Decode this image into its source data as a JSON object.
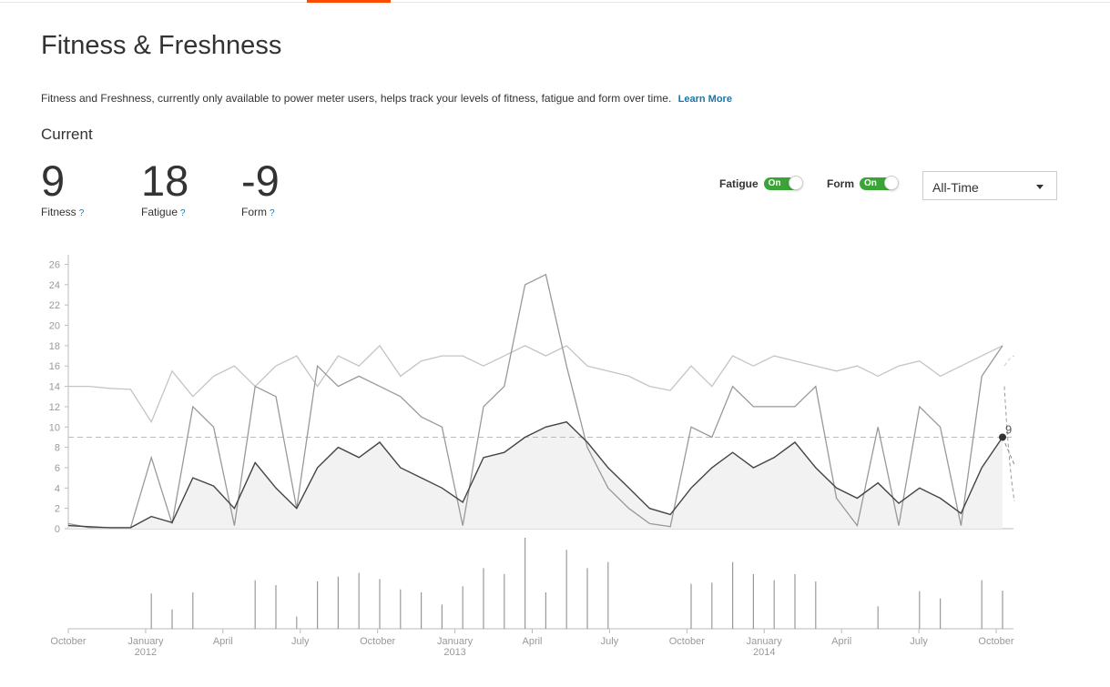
{
  "page": {
    "title": "Fitness & Freshness",
    "description": "Fitness and Freshness, currently only available to power meter users, helps track your levels of fitness, fatigue and form over time.",
    "learn_more": "Learn More",
    "current_label": "Current"
  },
  "stats": [
    {
      "value": "9",
      "label": "Fitness",
      "help": "?"
    },
    {
      "value": "18",
      "label": "Fatigue",
      "help": "?"
    },
    {
      "value": "-9",
      "label": "Form",
      "help": "?"
    }
  ],
  "toggles": {
    "fatigue": {
      "label": "Fatigue",
      "state": "On"
    },
    "form": {
      "label": "Form",
      "state": "On"
    }
  },
  "range_select": {
    "selected": "All-Time"
  },
  "colors": {
    "accent": "#fc4c02",
    "toggle_on": "#3aa536",
    "link": "#1a75a8"
  },
  "chart_data": {
    "type": "line",
    "ylim": [
      0,
      27
    ],
    "y_ticks": [
      "0",
      "2",
      "4",
      "6",
      "8",
      "10",
      "12",
      "14",
      "16",
      "18",
      "20",
      "22",
      "24",
      "26"
    ],
    "x_ticks": [
      {
        "label": "October",
        "year": ""
      },
      {
        "label": "January",
        "year": "2012"
      },
      {
        "label": "April",
        "year": ""
      },
      {
        "label": "July",
        "year": ""
      },
      {
        "label": "October",
        "year": ""
      },
      {
        "label": "January",
        "year": "2013"
      },
      {
        "label": "April",
        "year": ""
      },
      {
        "label": "July",
        "year": ""
      },
      {
        "label": "October",
        "year": ""
      },
      {
        "label": "January",
        "year": "2014"
      },
      {
        "label": "April",
        "year": ""
      },
      {
        "label": "July",
        "year": ""
      },
      {
        "label": "October",
        "year": ""
      }
    ],
    "current_fitness_label": "9",
    "reference_line": 9,
    "series": [
      {
        "values": [
          0.3,
          0.2,
          0.1,
          0.1,
          1.2,
          0.6,
          5,
          4.2,
          2,
          6.5,
          4,
          2,
          6,
          8,
          7,
          8.5,
          6,
          5,
          4,
          2.6,
          7,
          7.5,
          9,
          10,
          10.5,
          8.5,
          6,
          4,
          2,
          1.4,
          4,
          6,
          7.5,
          6,
          7,
          8.5,
          6,
          4,
          3,
          4.5,
          2.5,
          4,
          3,
          1.5,
          6,
          9
        ]
      },
      {
        "values": [
          14,
          14,
          13.8,
          13.7,
          10.5,
          15.5,
          13,
          15,
          16,
          14,
          16,
          17,
          14,
          17,
          16,
          18,
          15,
          16.5,
          17,
          17,
          16,
          17,
          18,
          17,
          18,
          16,
          15.5,
          15,
          14,
          13.6,
          16,
          14,
          17,
          16,
          17,
          16.5,
          16,
          15.5,
          16,
          15,
          16,
          16.5,
          15,
          16,
          17,
          18
        ]
      },
      {
        "values": [
          0.5,
          0.1,
          0.1,
          0.1,
          7,
          0.5,
          12,
          10,
          0.3,
          14,
          13,
          2,
          16,
          14,
          15,
          14,
          13,
          11,
          10,
          0.3,
          12,
          14,
          24,
          25,
          16,
          8,
          4,
          2,
          0.5,
          0.2,
          10,
          9,
          14,
          12,
          12,
          12,
          14,
          3,
          0.3,
          10,
          0.3,
          12,
          10,
          0.3,
          15,
          18
        ]
      }
    ],
    "daily_bars": [
      0,
      0,
      0,
      0,
      5.8,
      3.2,
      6,
      0,
      0,
      8,
      7.2,
      2,
      7.8,
      8.6,
      9.2,
      8.2,
      6.5,
      6,
      4,
      7,
      10,
      9,
      15,
      6,
      13,
      10,
      11,
      0,
      0,
      0,
      7.4,
      7.6,
      11,
      9,
      8,
      9,
      7.8,
      0,
      0,
      3.7,
      0,
      6.2,
      5,
      0,
      8,
      6.3
    ]
  }
}
